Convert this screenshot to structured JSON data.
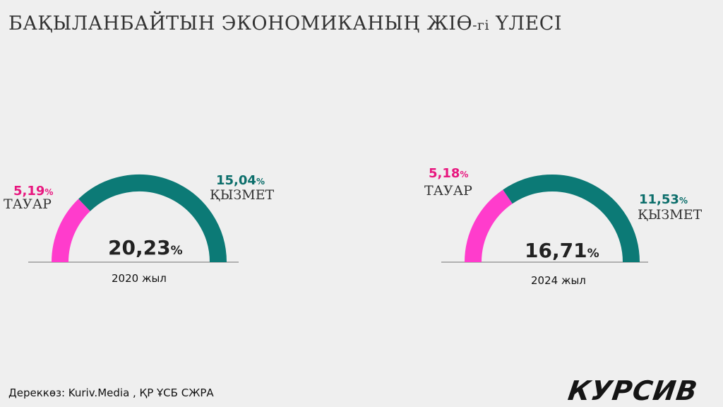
{
  "title_main": "БАҚЫЛАНБАЙТЫН ЭКОНОМИКАНЫҢ ЖІӨ",
  "title_suffix": "-гі",
  "title_end": " ҮЛЕСІ",
  "colors": {
    "goods": "#ff3ccc",
    "services": "#0c7a76",
    "goods_label": "#e8177f",
    "services_label": "#0c6e6b"
  },
  "chart_data": [
    {
      "type": "pie",
      "variant": "half-donut",
      "year_label": "2020 жыл",
      "total": "20,23",
      "total_value": 20.23,
      "unit": "%",
      "slices": [
        {
          "label": "ТАУАР",
          "value": 5.19,
          "value_text": "5,19"
        },
        {
          "label": "ҚЫЗМЕТ",
          "value": 15.04,
          "value_text": "15,04"
        }
      ]
    },
    {
      "type": "pie",
      "variant": "half-donut",
      "year_label": "2024 жыл",
      "total": "16,71",
      "total_value": 16.71,
      "unit": "%",
      "slices": [
        {
          "label": "ТАУАР",
          "value": 5.18,
          "value_text": "5,18"
        },
        {
          "label": "ҚЫЗМЕТ",
          "value": 11.53,
          "value_text": "11,53"
        }
      ]
    }
  ],
  "source": "Дереккөз: Kuriv.Media , ҚР ҰСБ СЖРА",
  "logo": "КУРСИВ"
}
